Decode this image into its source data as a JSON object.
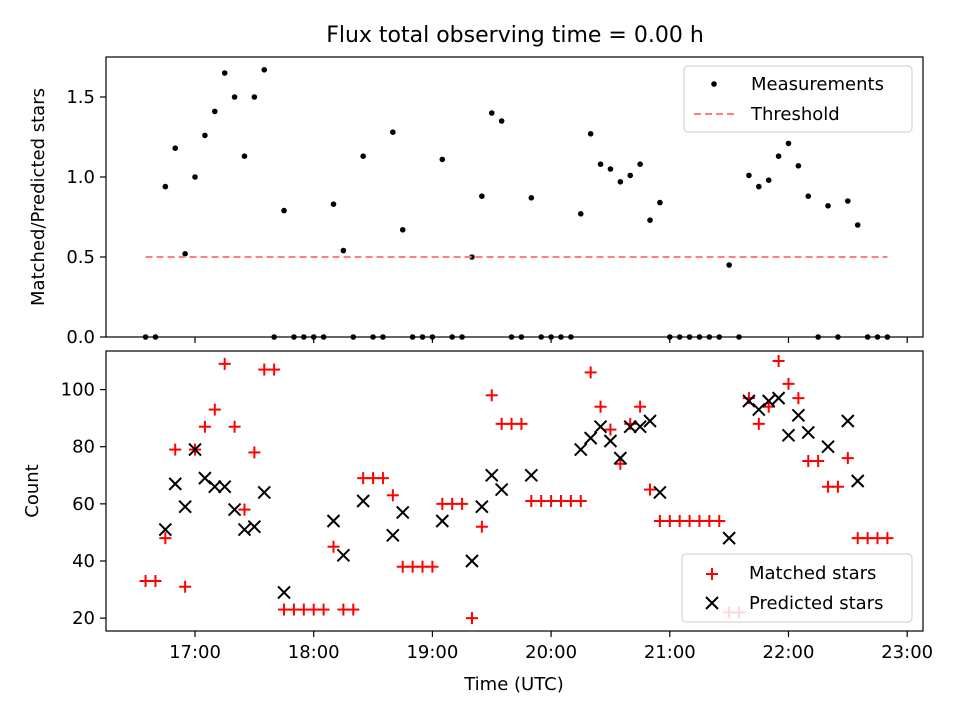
{
  "chart_data": [
    {
      "type": "scatter",
      "title": "Flux total observing time = 0.00 h",
      "xlabel": "",
      "ylabel": "Matched/Predicted stars",
      "xlim": [
        "16:15",
        "23:08"
      ],
      "ylim": [
        0,
        1.75
      ],
      "x_ticks": [
        "17:00",
        "18:00",
        "19:00",
        "20:00",
        "21:00",
        "22:00",
        "23:00"
      ],
      "y_ticks": [
        "0.0",
        "0.5",
        "1.0",
        "1.5"
      ],
      "legend_position": "top-right",
      "series": [
        {
          "name": "Measurements",
          "marker": "dot",
          "color": "#000000",
          "points": [
            [
              "16:35",
              0.0
            ],
            [
              "16:40",
              0.0
            ],
            [
              "16:45",
              0.94
            ],
            [
              "16:50",
              1.18
            ],
            [
              "16:55",
              0.52
            ],
            [
              "17:00",
              1.0
            ],
            [
              "17:05",
              1.26
            ],
            [
              "17:10",
              1.41
            ],
            [
              "17:15",
              1.65
            ],
            [
              "17:20",
              1.5
            ],
            [
              "17:25",
              1.13
            ],
            [
              "17:30",
              1.5
            ],
            [
              "17:35",
              1.67
            ],
            [
              "17:40",
              0.0
            ],
            [
              "17:45",
              0.79
            ],
            [
              "17:50",
              0.0
            ],
            [
              "17:55",
              0.0
            ],
            [
              "18:00",
              0.0
            ],
            [
              "18:05",
              0.0
            ],
            [
              "18:10",
              0.83
            ],
            [
              "18:15",
              0.54
            ],
            [
              "18:20",
              0.0
            ],
            [
              "18:25",
              1.13
            ],
            [
              "18:30",
              0.0
            ],
            [
              "18:35",
              0.0
            ],
            [
              "18:40",
              1.28
            ],
            [
              "18:45",
              0.67
            ],
            [
              "18:50",
              0.0
            ],
            [
              "18:55",
              0.0
            ],
            [
              "19:00",
              0.0
            ],
            [
              "19:05",
              1.11
            ],
            [
              "19:10",
              0.0
            ],
            [
              "19:15",
              0.0
            ],
            [
              "19:20",
              0.5
            ],
            [
              "19:25",
              0.88
            ],
            [
              "19:30",
              1.4
            ],
            [
              "19:35",
              1.35
            ],
            [
              "19:40",
              0.0
            ],
            [
              "19:45",
              0.0
            ],
            [
              "19:50",
              0.87
            ],
            [
              "19:55",
              0.0
            ],
            [
              "20:00",
              0.0
            ],
            [
              "20:05",
              0.0
            ],
            [
              "20:10",
              0.0
            ],
            [
              "20:15",
              0.77
            ],
            [
              "20:20",
              1.27
            ],
            [
              "20:25",
              1.08
            ],
            [
              "20:30",
              1.05
            ],
            [
              "20:35",
              0.97
            ],
            [
              "20:40",
              1.01
            ],
            [
              "20:45",
              1.08
            ],
            [
              "20:50",
              0.73
            ],
            [
              "20:55",
              0.84
            ],
            [
              "21:00",
              0.0
            ],
            [
              "21:05",
              0.0
            ],
            [
              "21:10",
              0.0
            ],
            [
              "21:15",
              0.0
            ],
            [
              "21:20",
              0.0
            ],
            [
              "21:25",
              0.0
            ],
            [
              "21:30",
              0.45
            ],
            [
              "21:35",
              0.0
            ],
            [
              "21:40",
              1.01
            ],
            [
              "21:45",
              0.94
            ],
            [
              "21:50",
              0.98
            ],
            [
              "21:55",
              1.13
            ],
            [
              "22:00",
              1.21
            ],
            [
              "22:05",
              1.07
            ],
            [
              "22:10",
              0.88
            ],
            [
              "22:15",
              0.0
            ],
            [
              "22:20",
              0.82
            ],
            [
              "22:25",
              0.0
            ],
            [
              "22:30",
              0.85
            ],
            [
              "22:35",
              0.7
            ],
            [
              "22:40",
              0.0
            ],
            [
              "22:45",
              0.0
            ],
            [
              "22:50",
              0.0
            ]
          ]
        },
        {
          "name": "Threshold",
          "style": "dashed-line",
          "color": "#ff7f7f",
          "points": [
            [
              "16:35",
              0.5
            ],
            [
              "22:50",
              0.5
            ]
          ]
        }
      ]
    },
    {
      "type": "scatter",
      "title": "",
      "xlabel": "Time (UTC)",
      "ylabel": "Count",
      "xlim": [
        "16:15",
        "23:08"
      ],
      "ylim": [
        15.5,
        113.5
      ],
      "x_ticks": [
        "17:00",
        "18:00",
        "19:00",
        "20:00",
        "21:00",
        "22:00",
        "23:00"
      ],
      "y_ticks": [
        "20",
        "40",
        "60",
        "80",
        "100"
      ],
      "legend_position": "bottom-right",
      "series": [
        {
          "name": "Matched stars",
          "marker": "plus",
          "color": "#ff0000",
          "points": [
            [
              "16:35",
              33
            ],
            [
              "16:40",
              33
            ],
            [
              "16:45",
              48
            ],
            [
              "16:50",
              79
            ],
            [
              "16:55",
              31
            ],
            [
              "17:00",
              79
            ],
            [
              "17:05",
              87
            ],
            [
              "17:10",
              93
            ],
            [
              "17:15",
              109
            ],
            [
              "17:20",
              87
            ],
            [
              "17:25",
              58
            ],
            [
              "17:30",
              78
            ],
            [
              "17:35",
              107
            ],
            [
              "17:40",
              107
            ],
            [
              "17:45",
              23
            ],
            [
              "17:50",
              23
            ],
            [
              "17:55",
              23
            ],
            [
              "18:00",
              23
            ],
            [
              "18:05",
              23
            ],
            [
              "18:10",
              45
            ],
            [
              "18:15",
              23
            ],
            [
              "18:20",
              23
            ],
            [
              "18:25",
              69
            ],
            [
              "18:30",
              69
            ],
            [
              "18:35",
              69
            ],
            [
              "18:40",
              63
            ],
            [
              "18:45",
              38
            ],
            [
              "18:50",
              38
            ],
            [
              "18:55",
              38
            ],
            [
              "19:00",
              38
            ],
            [
              "19:05",
              60
            ],
            [
              "19:10",
              60
            ],
            [
              "19:15",
              60
            ],
            [
              "19:20",
              20
            ],
            [
              "19:25",
              52
            ],
            [
              "19:30",
              98
            ],
            [
              "19:35",
              88
            ],
            [
              "19:40",
              88
            ],
            [
              "19:45",
              88
            ],
            [
              "19:50",
              61
            ],
            [
              "19:55",
              61
            ],
            [
              "20:00",
              61
            ],
            [
              "20:05",
              61
            ],
            [
              "20:10",
              61
            ],
            [
              "20:15",
              61
            ],
            [
              "20:20",
              106
            ],
            [
              "20:25",
              94
            ],
            [
              "20:30",
              86
            ],
            [
              "20:35",
              74
            ],
            [
              "20:40",
              88
            ],
            [
              "20:45",
              94
            ],
            [
              "20:50",
              65
            ],
            [
              "20:55",
              54
            ],
            [
              "21:00",
              54
            ],
            [
              "21:05",
              54
            ],
            [
              "21:10",
              54
            ],
            [
              "21:15",
              54
            ],
            [
              "21:20",
              54
            ],
            [
              "21:25",
              54
            ],
            [
              "21:30",
              22
            ],
            [
              "21:35",
              22
            ],
            [
              "21:40",
              97
            ],
            [
              "21:45",
              88
            ],
            [
              "21:50",
              94
            ],
            [
              "21:55",
              110
            ],
            [
              "22:00",
              102
            ],
            [
              "22:05",
              97
            ],
            [
              "22:10",
              75
            ],
            [
              "22:15",
              75
            ],
            [
              "22:20",
              66
            ],
            [
              "22:25",
              66
            ],
            [
              "22:30",
              76
            ],
            [
              "22:35",
              48
            ],
            [
              "22:40",
              48
            ],
            [
              "22:45",
              48
            ],
            [
              "22:50",
              48
            ]
          ]
        },
        {
          "name": "Predicted stars",
          "marker": "x",
          "color": "#000000",
          "points": [
            [
              "16:45",
              51
            ],
            [
              "16:50",
              67
            ],
            [
              "16:55",
              59
            ],
            [
              "17:00",
              79
            ],
            [
              "17:05",
              69
            ],
            [
              "17:10",
              66
            ],
            [
              "17:15",
              66
            ],
            [
              "17:20",
              58
            ],
            [
              "17:25",
              51
            ],
            [
              "17:30",
              52
            ],
            [
              "17:35",
              64
            ],
            [
              "17:45",
              29
            ],
            [
              "18:10",
              54
            ],
            [
              "18:15",
              42
            ],
            [
              "18:25",
              61
            ],
            [
              "18:40",
              49
            ],
            [
              "18:45",
              57
            ],
            [
              "19:05",
              54
            ],
            [
              "19:20",
              40
            ],
            [
              "19:25",
              59
            ],
            [
              "19:30",
              70
            ],
            [
              "19:35",
              65
            ],
            [
              "19:50",
              70
            ],
            [
              "20:15",
              79
            ],
            [
              "20:20",
              83
            ],
            [
              "20:25",
              87
            ],
            [
              "20:30",
              82
            ],
            [
              "20:35",
              76
            ],
            [
              "20:40",
              87
            ],
            [
              "20:45",
              87
            ],
            [
              "20:50",
              89
            ],
            [
              "20:55",
              64
            ],
            [
              "21:30",
              48
            ],
            [
              "21:40",
              96
            ],
            [
              "21:45",
              93
            ],
            [
              "21:50",
              96
            ],
            [
              "21:55",
              97
            ],
            [
              "22:00",
              84
            ],
            [
              "22:05",
              91
            ],
            [
              "22:10",
              85
            ],
            [
              "22:20",
              80
            ],
            [
              "22:30",
              89
            ],
            [
              "22:35",
              68
            ]
          ]
        }
      ]
    }
  ]
}
